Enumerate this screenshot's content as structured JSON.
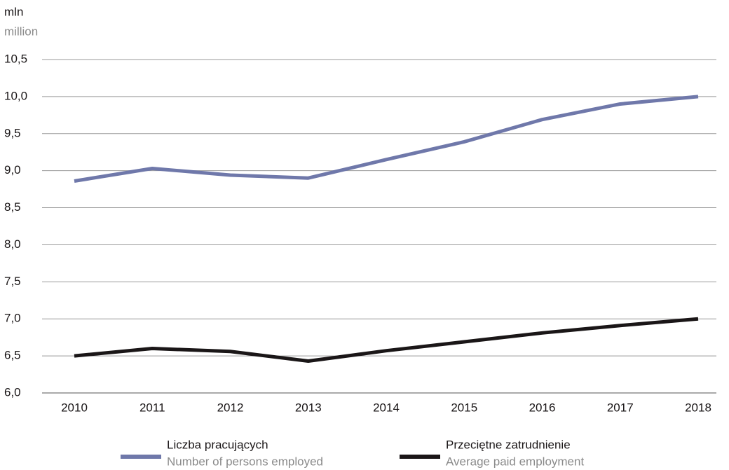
{
  "chart_data": {
    "type": "line",
    "y_label": "mln",
    "y_label_en": "million",
    "categories": [
      "2010",
      "2011",
      "2012",
      "2013",
      "2014",
      "2015",
      "2016",
      "2017",
      "2018"
    ],
    "series": [
      {
        "name": "Liczba pracujących",
        "name_en": "Number of persons employed",
        "color": "#6f78aa",
        "values": [
          8.86,
          9.03,
          8.94,
          8.9,
          9.15,
          9.39,
          9.69,
          9.9,
          10.0
        ]
      },
      {
        "name": "Przeciętne zatrudnienie",
        "name_en": "Average paid employment",
        "color": "#1a1617",
        "values": [
          6.5,
          6.6,
          6.56,
          6.43,
          6.57,
          6.69,
          6.81,
          6.91,
          7.0
        ]
      }
    ],
    "ylim": [
      6.0,
      10.5
    ],
    "yticks": [
      {
        "value": 6.0,
        "label": "6,0"
      },
      {
        "value": 6.5,
        "label": "6,5"
      },
      {
        "value": 7.0,
        "label": "7,0"
      },
      {
        "value": 7.5,
        "label": "7,5"
      },
      {
        "value": 8.0,
        "label": "8,0"
      },
      {
        "value": 8.5,
        "label": "8,5"
      },
      {
        "value": 9.0,
        "label": "9,0"
      },
      {
        "value": 9.5,
        "label": "9,5"
      },
      {
        "value": 10.0,
        "label": "10,0"
      },
      {
        "value": 10.5,
        "label": "10,5"
      }
    ],
    "grid": true
  }
}
